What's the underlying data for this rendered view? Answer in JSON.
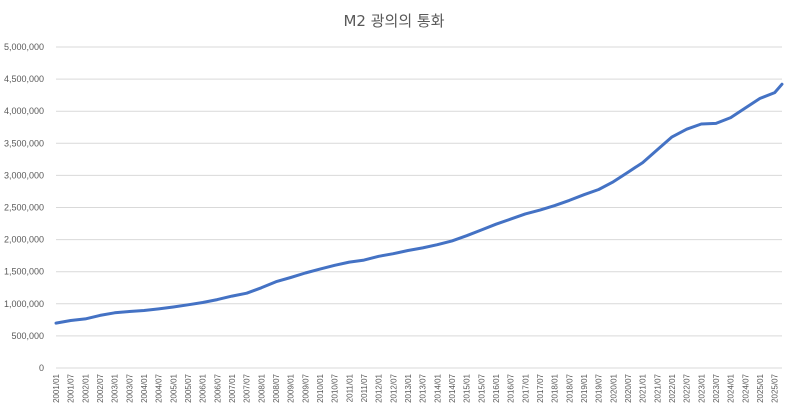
{
  "chart_data": {
    "type": "line",
    "title": "M2 광의의 통화",
    "xlabel": "",
    "ylabel": "",
    "ylim": [
      0,
      5000000
    ],
    "grid": true,
    "legend": "none",
    "y_ticks": [
      "0",
      "500,000",
      "1,000,000",
      "1,500,000",
      "2,000,000",
      "2,500,000",
      "3,000,000",
      "3,500,000",
      "4,000,000",
      "4,500,000",
      "5,000,000"
    ],
    "x_tick_labels": [
      "2001/01",
      "2001/07",
      "2002/01",
      "2002/07",
      "2003/01",
      "2003/07",
      "2004/01",
      "2004/07",
      "2005/01",
      "2005/07",
      "2006/01",
      "2006/07",
      "2007/01",
      "2007/07",
      "2008/01",
      "2008/07",
      "2009/01",
      "2009/07",
      "2010/01",
      "2010/07",
      "2011/01",
      "2011/07",
      "2012/01",
      "2012/07",
      "2013/01",
      "2013/07",
      "2014/01",
      "2014/07",
      "2015/01",
      "2015/07",
      "2016/01",
      "2016/07",
      "2017/01",
      "2017/07",
      "2018/01",
      "2018/07",
      "2019/01",
      "2019/07",
      "2020/01",
      "2020/07",
      "2021/01",
      "2021/07",
      "2022/01",
      "2022/07",
      "2023/01",
      "2023/07",
      "2024/01",
      "2024/07",
      "2025/01",
      "2025/07"
    ],
    "series": [
      {
        "color": "#4472c4",
        "x": [
          "2001/01",
          "2001/07",
          "2002/01",
          "2002/07",
          "2003/01",
          "2003/07",
          "2004/01",
          "2004/07",
          "2005/01",
          "2005/07",
          "2006/01",
          "2006/07",
          "2007/01",
          "2007/07",
          "2008/01",
          "2008/07",
          "2009/01",
          "2009/07",
          "2010/01",
          "2010/07",
          "2011/01",
          "2011/07",
          "2012/01",
          "2012/07",
          "2013/01",
          "2013/07",
          "2014/01",
          "2014/07",
          "2015/01",
          "2015/07",
          "2016/01",
          "2016/07",
          "2017/01",
          "2017/07",
          "2018/01",
          "2018/07",
          "2019/01",
          "2019/07",
          "2020/01",
          "2020/07",
          "2021/01",
          "2021/07",
          "2022/01",
          "2022/07",
          "2023/01",
          "2023/07",
          "2024/01",
          "2024/07",
          "2025/01",
          "2025/07",
          "2025/10"
        ],
        "values": [
          700000,
          740000,
          765000,
          820000,
          860000,
          880000,
          895000,
          920000,
          950000,
          985000,
          1020000,
          1065000,
          1120000,
          1165000,
          1250000,
          1345000,
          1410000,
          1480000,
          1540000,
          1600000,
          1650000,
          1680000,
          1740000,
          1780000,
          1830000,
          1870000,
          1920000,
          1980000,
          2060000,
          2150000,
          2240000,
          2320000,
          2400000,
          2460000,
          2530000,
          2610000,
          2700000,
          2780000,
          2900000,
          3050000,
          3200000,
          3400000,
          3600000,
          3720000,
          3800000,
          3810000,
          3900000,
          4050000,
          4200000,
          4290000,
          4420000
        ]
      }
    ]
  }
}
